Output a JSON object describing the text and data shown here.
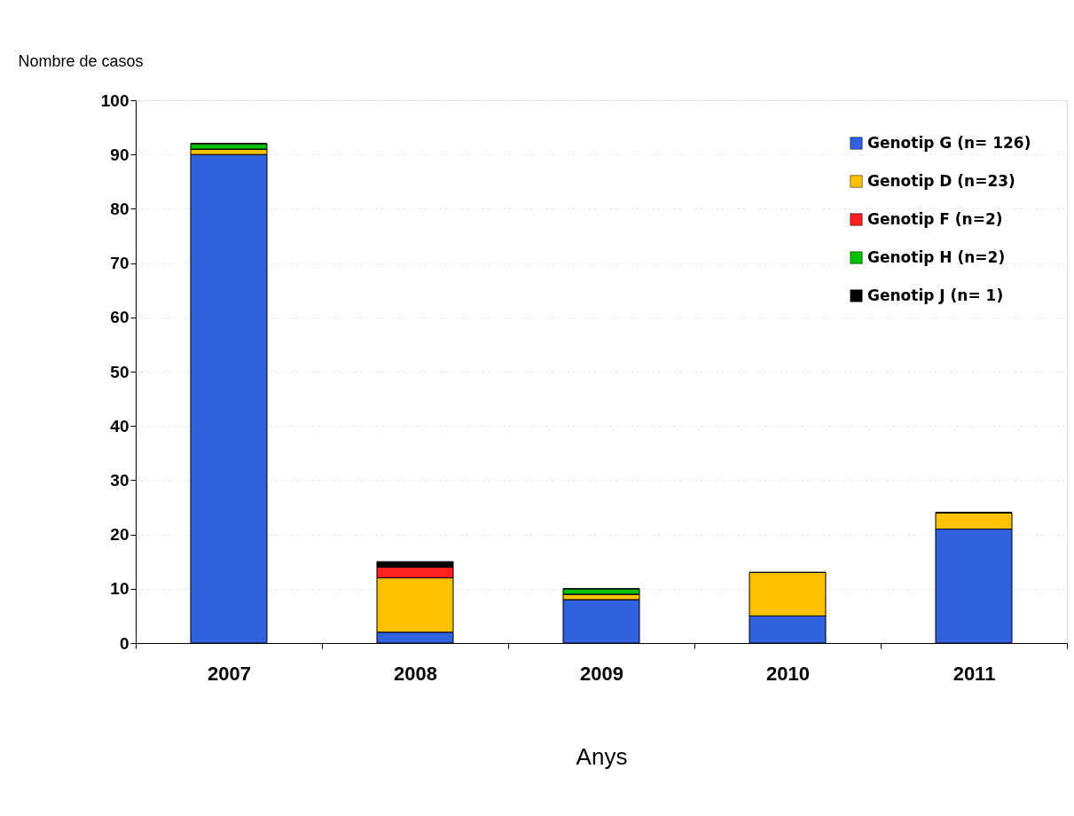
{
  "chart_data": {
    "type": "bar",
    "stacked": true,
    "ylabel": "Nombre de casos",
    "xlabel": "Anys",
    "categories": [
      "2007",
      "2008",
      "2009",
      "2010",
      "2011"
    ],
    "series": [
      {
        "name": "Genotip G (n= 126)",
        "color": "#3161de",
        "values": [
          90,
          2,
          8,
          5,
          21
        ]
      },
      {
        "name": "Genotip D (n=23)",
        "color": "#ffc000",
        "values": [
          1,
          10,
          1,
          8,
          3
        ]
      },
      {
        "name": "Genotip F (n=2)",
        "color": "#ff2020",
        "values": [
          0,
          2,
          0,
          0,
          0
        ]
      },
      {
        "name": "Genotip H (n=2)",
        "color": "#00c000",
        "values": [
          1,
          0,
          1,
          0,
          0
        ]
      },
      {
        "name": "Genotip J (n= 1)",
        "color": "#000000",
        "values": [
          0,
          1,
          0,
          0,
          0
        ]
      }
    ],
    "ylim": [
      0,
      100
    ],
    "yticks": [
      0,
      10,
      20,
      30,
      40,
      50,
      60,
      70,
      80,
      90,
      100
    ],
    "grid": "y",
    "legend": "top right"
  }
}
